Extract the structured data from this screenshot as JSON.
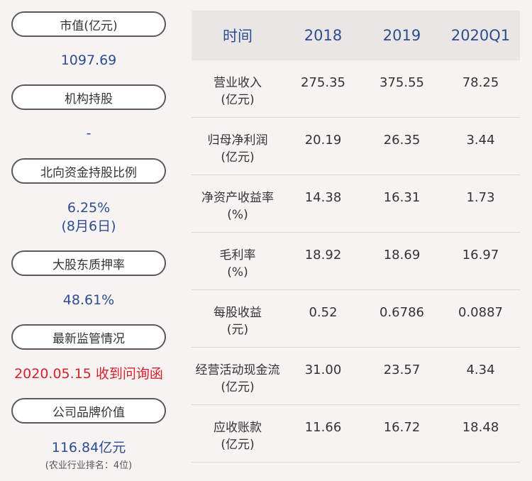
{
  "left": {
    "market_value": {
      "label": "市值(亿元)",
      "value": "1097.69"
    },
    "institution": {
      "label": "机构持股",
      "value": "-"
    },
    "northbound": {
      "label": "北向资金持股比例",
      "value": "6.25%",
      "note": "(8月6日)"
    },
    "pledge": {
      "label": "大股东质押率",
      "value": "48.61%"
    },
    "regulation": {
      "label": "最新监管情况",
      "value": "2020.05.15 收到问询函"
    },
    "brand": {
      "label": "公司品牌价值",
      "value": "116.84亿元",
      "note": "(农业行业排名：4位)"
    }
  },
  "table": {
    "headers": [
      "时间",
      "2018",
      "2019",
      "2020Q1"
    ],
    "rows": [
      {
        "name": "营业收入",
        "unit": "(亿元)",
        "values": [
          "275.35",
          "375.55",
          "78.25"
        ]
      },
      {
        "name": "归母净利润",
        "unit": "(亿元)",
        "values": [
          "20.19",
          "26.35",
          "3.44"
        ]
      },
      {
        "name": "净资产收益率",
        "unit": "(%)",
        "values": [
          "14.38",
          "16.31",
          "1.73"
        ]
      },
      {
        "name": "毛利率",
        "unit": "(%)",
        "values": [
          "18.92",
          "18.69",
          "16.97"
        ]
      },
      {
        "name": "每股收益",
        "unit": "(元)",
        "values": [
          "0.52",
          "0.6786",
          "0.0887"
        ]
      },
      {
        "name": "经营活动现金流",
        "unit": "(亿元)",
        "values": [
          "31.00",
          "23.57",
          "4.34"
        ]
      },
      {
        "name": "应收账款",
        "unit": "(亿元)",
        "values": [
          "11.66",
          "16.72",
          "18.48"
        ]
      }
    ]
  }
}
